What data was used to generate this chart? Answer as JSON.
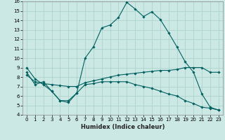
{
  "xlabel": "Humidex (Indice chaleur)",
  "background_color": "#cce8e4",
  "grid_color": "#aed4ce",
  "line_color": "#006060",
  "xlim": [
    -0.5,
    23.5
  ],
  "ylim": [
    4,
    16
  ],
  "xticks": [
    0,
    1,
    2,
    3,
    4,
    5,
    6,
    7,
    8,
    9,
    10,
    11,
    12,
    13,
    14,
    15,
    16,
    17,
    18,
    19,
    20,
    21,
    22,
    23
  ],
  "yticks": [
    4,
    5,
    6,
    7,
    8,
    9,
    10,
    11,
    12,
    13,
    14,
    15,
    16
  ],
  "line1_x": [
    0,
    1,
    2,
    3,
    4,
    5,
    6,
    7,
    8,
    9,
    10,
    11,
    12,
    13,
    14,
    15,
    16,
    17,
    18,
    19,
    20,
    21,
    22,
    23
  ],
  "line1_y": [
    9.0,
    7.8,
    7.2,
    6.5,
    5.5,
    5.3,
    6.3,
    10.0,
    11.2,
    13.2,
    13.5,
    14.3,
    15.9,
    15.2,
    14.4,
    14.9,
    14.1,
    12.7,
    11.2,
    9.6,
    8.5,
    6.2,
    4.8,
    4.5
  ],
  "line2_x": [
    0,
    1,
    2,
    3,
    4,
    5,
    6,
    7,
    8,
    9,
    10,
    11,
    12,
    13,
    14,
    15,
    16,
    17,
    18,
    19,
    20,
    21,
    22,
    23
  ],
  "line2_y": [
    8.2,
    7.5,
    7.3,
    7.2,
    7.1,
    7.0,
    7.0,
    7.4,
    7.6,
    7.8,
    8.0,
    8.2,
    8.3,
    8.4,
    8.5,
    8.6,
    8.7,
    8.7,
    8.8,
    9.0,
    9.0,
    9.0,
    8.5,
    8.5
  ],
  "line3_x": [
    0,
    1,
    2,
    3,
    4,
    5,
    6,
    7,
    8,
    9,
    10,
    11,
    12,
    13,
    14,
    15,
    16,
    17,
    18,
    19,
    20,
    21,
    22,
    23
  ],
  "line3_y": [
    8.5,
    7.2,
    7.5,
    6.5,
    5.5,
    5.5,
    6.3,
    7.2,
    7.3,
    7.5,
    7.5,
    7.5,
    7.5,
    7.2,
    7.0,
    6.8,
    6.5,
    6.2,
    6.0,
    5.5,
    5.2,
    4.8,
    4.7,
    4.5
  ]
}
